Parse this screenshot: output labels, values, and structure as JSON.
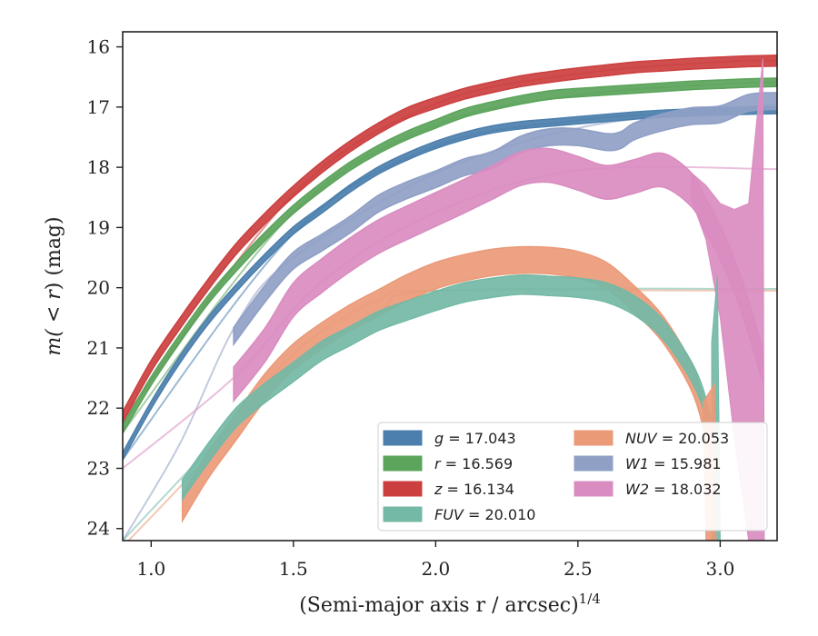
{
  "chart_data": {
    "type": "line",
    "xlabel": "(Semi-major axis r / arcsec)",
    "xlabel_sup": "1/4",
    "ylabel_prefix": "m(",
    "ylabel_mid": " < r",
    "ylabel_suffix": ") (mag)",
    "xlim": [
      0.9,
      3.2
    ],
    "ylim": [
      24.2,
      15.75
    ],
    "y_inverted": true,
    "grid": false,
    "legend_position": "lower-right",
    "xticks": [
      1.0,
      1.5,
      2.0,
      2.5,
      3.0
    ],
    "xtick_labels": [
      "1.0",
      "1.5",
      "2.0",
      "2.5",
      "3.0"
    ],
    "yticks": [
      16,
      17,
      18,
      19,
      20,
      21,
      22,
      23,
      24
    ],
    "ytick_labels": [
      "16",
      "17",
      "18",
      "19",
      "20",
      "21",
      "22",
      "23",
      "24"
    ],
    "series": [
      {
        "name": "z",
        "legend_label": "z = 16.134",
        "color": "#cc3f3f",
        "band_width": 0.09,
        "x": [
          0.9,
          1.0,
          1.1,
          1.2,
          1.3,
          1.4,
          1.5,
          1.6,
          1.7,
          1.8,
          1.9,
          2.0,
          2.1,
          2.2,
          2.3,
          2.4,
          2.5,
          2.6,
          2.7,
          2.8,
          2.9,
          3.0,
          3.1,
          3.2
        ],
        "y": [
          22.15,
          21.3,
          20.6,
          19.95,
          19.35,
          18.85,
          18.4,
          18.0,
          17.65,
          17.35,
          17.1,
          16.93,
          16.78,
          16.67,
          16.57,
          16.5,
          16.44,
          16.39,
          16.34,
          16.31,
          16.28,
          16.26,
          16.24,
          16.23
        ],
        "model": {
          "x": [
            0.9,
            1.5,
            2.0,
            2.5,
            3.0,
            3.2
          ],
          "y": [
            22.2,
            18.45,
            16.95,
            16.45,
            16.25,
            16.23
          ]
        }
      },
      {
        "name": "r",
        "legend_label": "r = 16.569",
        "color": "#5ba45b",
        "band_width": 0.07,
        "x": [
          0.9,
          1.0,
          1.1,
          1.2,
          1.3,
          1.4,
          1.5,
          1.6,
          1.7,
          1.8,
          1.9,
          2.0,
          2.1,
          2.2,
          2.3,
          2.4,
          2.5,
          2.6,
          2.7,
          2.8,
          2.9,
          3.0,
          3.1,
          3.2
        ],
        "y": [
          22.35,
          21.55,
          20.85,
          20.2,
          19.65,
          19.15,
          18.7,
          18.32,
          17.98,
          17.7,
          17.47,
          17.28,
          17.1,
          16.98,
          16.88,
          16.8,
          16.76,
          16.73,
          16.7,
          16.67,
          16.64,
          16.62,
          16.6,
          16.59
        ],
        "model": {
          "x": [
            0.9,
            1.5,
            2.0,
            2.5,
            3.0,
            3.2
          ],
          "y": [
            22.4,
            18.75,
            17.3,
            16.8,
            16.62,
            16.59
          ]
        }
      },
      {
        "name": "g",
        "legend_label": "g = 17.043",
        "color": "#4c7fad",
        "band_width": 0.06,
        "x": [
          0.9,
          1.0,
          1.1,
          1.2,
          1.3,
          1.4,
          1.5,
          1.6,
          1.7,
          1.8,
          1.9,
          2.0,
          2.1,
          2.2,
          2.3,
          2.4,
          2.5,
          2.6,
          2.7,
          2.8,
          2.9,
          3.0,
          3.1,
          3.2
        ],
        "y": [
          22.8,
          21.95,
          21.2,
          20.55,
          20.0,
          19.5,
          19.05,
          18.7,
          18.35,
          18.05,
          17.82,
          17.63,
          17.48,
          17.37,
          17.3,
          17.26,
          17.22,
          17.18,
          17.14,
          17.11,
          17.09,
          17.07,
          17.06,
          17.05
        ],
        "model": {
          "x": [
            0.9,
            1.5,
            2.0,
            2.5,
            3.0,
            3.2
          ],
          "y": [
            22.85,
            19.1,
            17.65,
            17.22,
            17.07,
            17.05
          ]
        }
      },
      {
        "name": "W1",
        "legend_label": "W1 = 15.981",
        "color": "#8f9fc5",
        "band_width": 0.14,
        "x": [
          1.29,
          1.4,
          1.5,
          1.6,
          1.7,
          1.8,
          1.9,
          2.0,
          2.1,
          2.2,
          2.3,
          2.4,
          2.5,
          2.6,
          2.65,
          2.7,
          2.8,
          2.9,
          3.0,
          3.1,
          3.2
        ],
        "y": [
          20.8,
          20.1,
          19.55,
          19.25,
          18.95,
          18.6,
          18.38,
          18.2,
          18.0,
          17.88,
          17.62,
          17.5,
          17.5,
          17.58,
          17.55,
          17.4,
          17.25,
          17.15,
          17.12,
          16.93,
          16.9
        ],
        "model": {
          "x": [
            0.9,
            1.1,
            1.3,
            1.5,
            2.0,
            2.5,
            3.0,
            3.2
          ],
          "y": [
            24.2,
            22.6,
            20.6,
            19.5,
            18.1,
            17.35,
            17.05,
            16.95
          ]
        }
      },
      {
        "name": "W2",
        "legend_label": "W2 = 18.032",
        "color": "#d98cc0",
        "band_width": 0.28,
        "x": [
          1.29,
          1.4,
          1.5,
          1.6,
          1.7,
          1.8,
          1.9,
          2.0,
          2.1,
          2.2,
          2.3,
          2.4,
          2.5,
          2.6,
          2.7,
          2.8,
          2.9,
          2.95,
          3.0,
          3.05,
          3.1,
          3.15
        ],
        "y": [
          21.6,
          20.95,
          20.2,
          19.8,
          19.45,
          19.15,
          18.92,
          18.7,
          18.48,
          18.25,
          18.02,
          17.97,
          18.1,
          18.25,
          18.15,
          18.05,
          18.38,
          18.8,
          19.25,
          19.8,
          20.5,
          21.3
        ],
        "model": {
          "x": [
            0.9,
            1.3,
            1.6,
            2.0,
            2.5,
            3.2
          ],
          "y": [
            23.0,
            21.45,
            19.9,
            18.75,
            18.05,
            18.03
          ]
        }
      },
      {
        "name": "NUV",
        "legend_label": "NUV = 20.053",
        "color": "#eb9a78",
        "band_width": 0.22,
        "x": [
          1.11,
          1.2,
          1.3,
          1.4,
          1.5,
          1.6,
          1.7,
          1.8,
          1.9,
          2.0,
          2.1,
          2.2,
          2.3,
          2.4,
          2.5,
          2.6,
          2.7,
          2.8,
          2.9,
          2.95,
          2.98
        ],
        "y": [
          23.65,
          22.95,
          22.3,
          21.65,
          21.15,
          20.8,
          20.5,
          20.25,
          20.0,
          19.8,
          19.67,
          19.58,
          19.54,
          19.55,
          19.62,
          19.8,
          20.2,
          20.7,
          21.5,
          22.3,
          23.1
        ],
        "model": {
          "x": [
            0.9,
            1.2,
            1.5,
            1.8,
            2.0,
            3.2
          ],
          "y": [
            24.3,
            22.8,
            21.1,
            20.2,
            20.05,
            20.05
          ]
        }
      },
      {
        "name": "FUV",
        "legend_label": "FUV = 20.010",
        "color": "#74b9a6",
        "band_width": 0.16,
        "x": [
          1.11,
          1.2,
          1.3,
          1.4,
          1.5,
          1.6,
          1.7,
          1.8,
          1.9,
          2.0,
          2.1,
          2.2,
          2.3,
          2.4,
          2.5,
          2.6,
          2.7,
          2.8,
          2.9,
          2.95,
          2.98
        ],
        "y": [
          23.35,
          22.75,
          22.15,
          21.75,
          21.4,
          21.05,
          20.8,
          20.55,
          20.38,
          20.22,
          20.08,
          20.0,
          19.95,
          19.97,
          20.0,
          20.08,
          20.3,
          20.7,
          21.4,
          22.0,
          22.7
        ],
        "model": {
          "x": [
            0.9,
            1.2,
            1.5,
            1.8,
            2.0,
            3.2
          ],
          "y": [
            24.2,
            22.7,
            21.3,
            20.4,
            20.05,
            20.02
          ]
        }
      }
    ],
    "legend": [
      {
        "symbol": "g",
        "value": "17.043",
        "color": "#4c7fad"
      },
      {
        "symbol": "r",
        "value": "16.569",
        "color": "#5ba45b"
      },
      {
        "symbol": "z",
        "value": "16.134",
        "color": "#cc3f3f"
      },
      {
        "symbol": "FUV",
        "value": "20.010",
        "color": "#74b9a6"
      },
      {
        "symbol": "NUV",
        "value": "20.053",
        "color": "#eb9a78"
      },
      {
        "symbol": "W1",
        "value": "15.981",
        "color": "#8f9fc5"
      },
      {
        "symbol": "W2",
        "value": "18.032",
        "color": "#d98cc0"
      }
    ]
  }
}
